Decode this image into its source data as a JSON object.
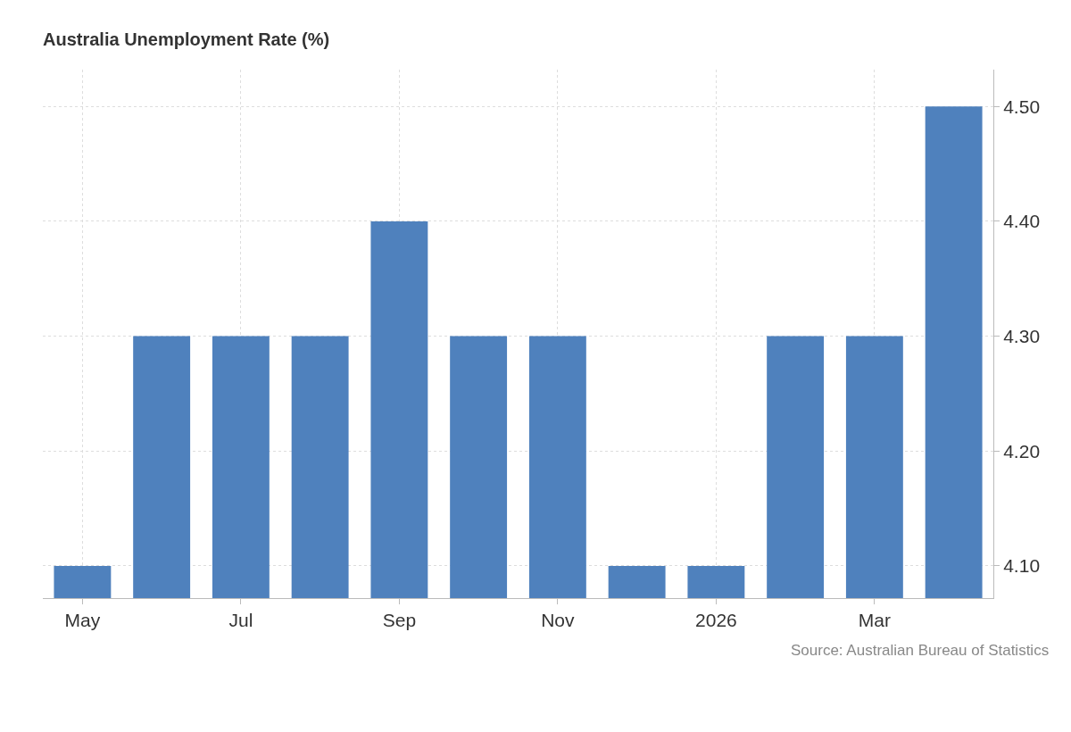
{
  "chart_data": {
    "type": "bar",
    "title": "Australia Unemployment Rate (%)",
    "categories": [
      "May",
      null,
      "Jul",
      null,
      "Sep",
      null,
      "Nov",
      null,
      "2026",
      null,
      "Mar",
      null
    ],
    "values": [
      4.1,
      4.3,
      4.3,
      4.3,
      4.4,
      4.3,
      4.3,
      4.1,
      4.1,
      4.3,
      4.3,
      4.5
    ],
    "color": "#4f81bd",
    "ylim": [
      4.072,
      4.532
    ],
    "yticks": [
      {
        "value": 4.1,
        "label": "4.10"
      },
      {
        "value": 4.2,
        "label": "4.20"
      },
      {
        "value": 4.3,
        "label": "4.30"
      },
      {
        "value": 4.4,
        "label": "4.40"
      },
      {
        "value": 4.5,
        "label": "4.50"
      }
    ],
    "grid": true,
    "annotations": [
      "Source: Australian Bureau of Statistics"
    ]
  }
}
